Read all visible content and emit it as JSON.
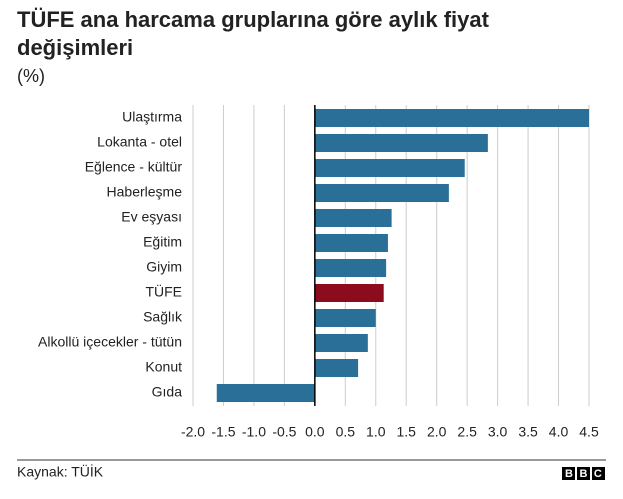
{
  "chart_data": {
    "type": "barh",
    "title": "TÜFE ana harcama gruplarına göre aylık fiyat değişimleri",
    "subtitle": "(%)",
    "source": "Kaynak: TÜİK",
    "logo": "BBC",
    "categories": [
      "Ulaştırma",
      "Lokanta - otel",
      "Eğlence - kültür",
      "Haberleşme",
      "Ev eşyası",
      "Eğitim",
      "Giyim",
      "TÜFE",
      "Sağlık",
      "Alkollü içecekler - tütün",
      "Konut",
      "Gıda"
    ],
    "values": [
      4.5,
      2.84,
      2.46,
      2.2,
      1.26,
      1.2,
      1.17,
      1.13,
      1.0,
      0.87,
      0.71,
      -1.61
    ],
    "colors": [
      "#2a6f97",
      "#2a6f97",
      "#2a6f97",
      "#2a6f97",
      "#2a6f97",
      "#2a6f97",
      "#2a6f97",
      "#8c0b1c",
      "#2a6f97",
      "#2a6f97",
      "#2a6f97",
      "#2a6f97"
    ],
    "xlim": [
      -2,
      4.5
    ],
    "xticks": [
      {
        "value": -2,
        "label": "-2.0"
      },
      -1.5,
      {
        "value": -1,
        "label": "-1.0"
      },
      -0.5,
      {
        "value": 0,
        "label": "0.0"
      },
      0.5,
      {
        "value": 1,
        "label": "1.0"
      },
      1.5,
      {
        "value": 2,
        "label": "2.0"
      },
      2.5,
      {
        "value": 3,
        "label": "3.0"
      },
      3.5,
      {
        "value": 4,
        "label": "4.0"
      },
      4.5
    ],
    "grid": true
  }
}
